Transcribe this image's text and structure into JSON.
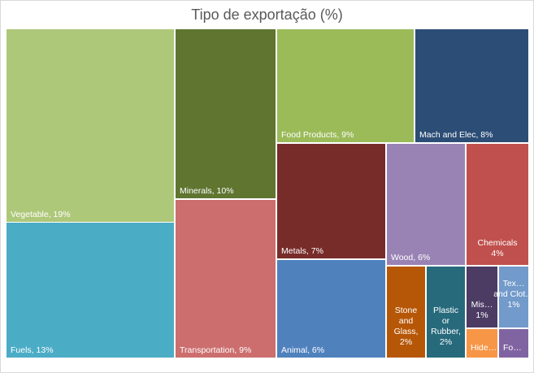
{
  "chart_data": {
    "type": "treemap",
    "title": "Tipo de exportação (%)",
    "items": [
      {
        "name": "Vegetable",
        "label": "Vegetable, 19%",
        "value": 19,
        "color": "#AEC87A"
      },
      {
        "name": "Fuels",
        "label": "Fuels, 13%",
        "value": 13,
        "color": "#4BACC6"
      },
      {
        "name": "Minerals",
        "label": "Minerals, 10%",
        "value": 10,
        "color": "#5F7530"
      },
      {
        "name": "Transportation",
        "label": "Transportation, 9%",
        "value": 9,
        "color": "#CC6E6E"
      },
      {
        "name": "Food Products",
        "label": "Food Products, 9%",
        "value": 9,
        "color": "#9BBB59"
      },
      {
        "name": "Mach and Elec",
        "label": "Mach and Elec, 8%",
        "value": 8,
        "color": "#2C4D75"
      },
      {
        "name": "Metals",
        "label": "Metals, 7%",
        "value": 7,
        "color": "#772C2A"
      },
      {
        "name": "Animal",
        "label": "Animal, 6%",
        "value": 6,
        "color": "#4F81BD"
      },
      {
        "name": "Wood",
        "label": "Wood, 6%",
        "value": 6,
        "color": "#9983B5"
      },
      {
        "name": "Chemicals",
        "label": "Chemicals, 4%",
        "value": 4,
        "color": "#C0504D"
      },
      {
        "name": "Stone and Glass",
        "label": "Stone and Glass, 2%",
        "value": 2,
        "color": "#B65708"
      },
      {
        "name": "Plastic or Rubber",
        "label": "Plastic or Rubber, 2%",
        "value": 2,
        "color": "#276A7C"
      },
      {
        "name": "Miscellaneous",
        "label": "Mis… 1%",
        "value": 1,
        "color": "#4C3C64"
      },
      {
        "name": "Textiles and Clothing",
        "label": "Tex… and Clot… 1%",
        "value": 1,
        "color": "#729ACA"
      },
      {
        "name": "Hides",
        "label": "Hide…",
        "value": null,
        "color": "#F79646"
      },
      {
        "name": "Footwear",
        "label": "Fo…",
        "value": null,
        "color": "#8064A2"
      }
    ]
  }
}
